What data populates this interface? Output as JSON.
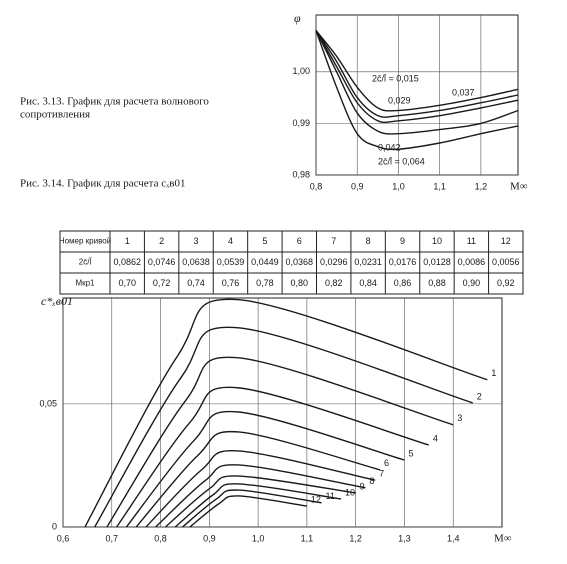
{
  "captions": [
    [
      "Рис. 3.13. График для расчета волнового",
      "сопротивления"
    ],
    [
      "Рис. 3.14. График для расчета cₓв01"
    ]
  ],
  "table": {
    "rows": [
      [
        "Номер кривой",
        "1",
        "2",
        "3",
        "4",
        "5",
        "6",
        "7",
        "8",
        "9",
        "10",
        "11",
        "12"
      ],
      [
        "2c̄/l̄",
        "0,0862",
        "0,0746",
        "0,0638",
        "0,0539",
        "0,0449",
        "0,0368",
        "0,0296",
        "0,0231",
        "0,0176",
        "0,0128",
        "0,0086",
        "0,0056"
      ],
      [
        "Mкр1",
        "0,70",
        "0,72",
        "0,74",
        "0,76",
        "0,78",
        "0,80",
        "0,82",
        "0,84",
        "0,86",
        "0,88",
        "0,90",
        "0,92"
      ]
    ]
  },
  "chart_data": [
    {
      "type": "line",
      "y_label": "φ",
      "x_label": "M∞",
      "color": "#1a1a1a",
      "grid": true,
      "xlim": [
        0.8,
        1.29
      ],
      "ylim": [
        0.98,
        1.011
      ],
      "xticks": [
        {
          "value": 0.8,
          "label": "0,8"
        },
        {
          "value": 0.9,
          "label": "0,9"
        },
        {
          "value": 1.0,
          "label": "1,0"
        },
        {
          "value": 1.1,
          "label": "1,1"
        },
        {
          "value": 1.2,
          "label": "1,2"
        }
      ],
      "yticks": [
        {
          "value": 0.98,
          "label": "0,98"
        },
        {
          "value": 0.99,
          "label": "0,99"
        },
        {
          "value": 1.0,
          "label": "1,00"
        }
      ],
      "x": [
        0.8,
        0.85,
        0.9,
        0.95,
        1.0,
        1.1,
        1.2,
        1.29
      ],
      "series": [
        {
          "name": "2c̄/l̄ = 0,015",
          "values": [
            1.008,
            1.003,
            0.997,
            0.993,
            0.9925,
            0.9935,
            0.995,
            0.9966
          ]
        },
        {
          "name": "0,029",
          "values": [
            1.008,
            1.002,
            0.995,
            0.9915,
            0.9915,
            0.9925,
            0.994,
            0.9955
          ]
        },
        {
          "name": "0,037",
          "values": [
            1.008,
            1.001,
            0.994,
            0.9905,
            0.9905,
            0.9915,
            0.993,
            0.9945
          ]
        },
        {
          "name": "0,042",
          "values": [
            1.008,
            1.0,
            0.992,
            0.9885,
            0.988,
            0.9888,
            0.99,
            0.9925
          ]
        },
        {
          "name": "2c̄/l̄ = 0,064",
          "values": [
            1.008,
            0.997,
            0.988,
            0.9855,
            0.985,
            0.9862,
            0.988,
            0.9895
          ]
        }
      ]
    },
    {
      "type": "line",
      "y_label": "c*ₓв01",
      "x_label": "M∞",
      "color": "#1a1a1a",
      "grid": true,
      "xlim": [
        0.6,
        1.5
      ],
      "ylim": [
        0,
        0.093
      ],
      "xticks": [
        {
          "value": 0.6,
          "label": "0,6"
        },
        {
          "value": 0.7,
          "label": "0,7"
        },
        {
          "value": 0.8,
          "label": "0,8"
        },
        {
          "value": 0.9,
          "label": "0,9"
        },
        {
          "value": 1.0,
          "label": "1,0"
        },
        {
          "value": 1.1,
          "label": "1,1"
        },
        {
          "value": 1.2,
          "label": "1,2"
        },
        {
          "value": 1.3,
          "label": "1,3"
        },
        {
          "value": 1.4,
          "label": "1,4"
        }
      ],
      "yticks": [
        0,
        {
          "value": 0.05,
          "label": "0,05"
        }
      ],
      "series": [
        {
          "name": "1",
          "x": [
            0.645,
            0.834,
            0.96,
            1.47
          ],
          "values": [
            0,
            0.0692,
            0.0923,
            0.0598
          ]
        },
        {
          "name": "2",
          "x": [
            0.665,
            0.842,
            0.96,
            1.44
          ],
          "values": [
            0,
            0.0607,
            0.0809,
            0.0504
          ]
        },
        {
          "name": "3",
          "x": [
            0.69,
            0.852,
            0.96,
            1.4
          ],
          "values": [
            0,
            0.0515,
            0.0687,
            0.0415
          ]
        },
        {
          "name": "4",
          "x": [
            0.71,
            0.86,
            0.96,
            1.35
          ],
          "values": [
            0,
            0.0424,
            0.0565,
            0.0333
          ]
        },
        {
          "name": "5",
          "x": [
            0.73,
            0.868,
            0.96,
            1.3
          ],
          "values": [
            0,
            0.035,
            0.0467,
            0.0272
          ]
        },
        {
          "name": "6",
          "x": [
            0.75,
            0.876,
            0.96,
            1.25
          ],
          "values": [
            0,
            0.029,
            0.0386,
            0.0232
          ]
        },
        {
          "name": "7",
          "x": [
            0.77,
            0.884,
            0.96,
            1.24
          ],
          "values": [
            0,
            0.0232,
            0.0309,
            0.019
          ]
        },
        {
          "name": "8",
          "x": [
            0.79,
            0.892,
            0.96,
            1.22
          ],
          "values": [
            0,
            0.0189,
            0.0252,
            0.0159
          ]
        },
        {
          "name": "9",
          "x": [
            0.81,
            0.9,
            0.96,
            1.2
          ],
          "values": [
            0,
            0.0155,
            0.0207,
            0.0138
          ]
        },
        {
          "name": "10",
          "x": [
            0.83,
            0.908,
            0.96,
            1.17
          ],
          "values": [
            0,
            0.0131,
            0.0175,
            0.0114
          ]
        },
        {
          "name": "11",
          "x": [
            0.845,
            0.914,
            0.96,
            1.13
          ],
          "values": [
            0,
            0.0113,
            0.015,
            0.0098
          ]
        },
        {
          "name": "12",
          "x": [
            0.86,
            0.92,
            0.96,
            1.1
          ],
          "values": [
            0,
            0.0095,
            0.0126,
            0.0085
          ]
        }
      ]
    }
  ]
}
